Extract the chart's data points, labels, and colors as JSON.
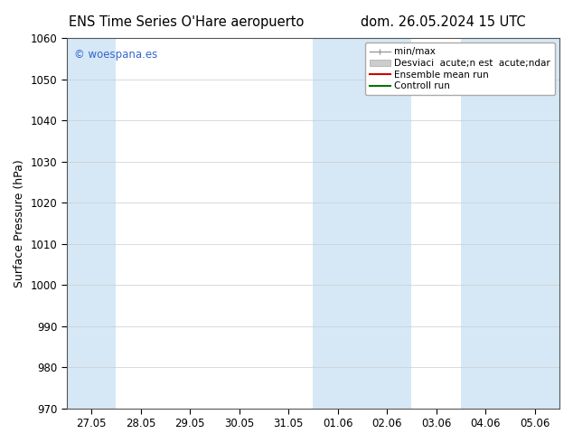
{
  "title_left": "ENS Time Series O'Hare aeropuerto",
  "title_right": "dom. 26.05.2024 15 UTC",
  "ylabel": "Surface Pressure (hPa)",
  "ylim": [
    970,
    1060
  ],
  "yticks": [
    970,
    980,
    990,
    1000,
    1010,
    1020,
    1030,
    1040,
    1050,
    1060
  ],
  "xlabel_ticks": [
    "27.05",
    "28.05",
    "29.05",
    "30.05",
    "31.05",
    "01.06",
    "02.06",
    "03.06",
    "04.06",
    "05.06"
  ],
  "x_num": [
    0,
    1,
    2,
    3,
    4,
    5,
    6,
    7,
    8,
    9
  ],
  "x_min": -0.5,
  "x_max": 9.5,
  "shaded_bands": [
    {
      "x_start": -0.5,
      "x_end": 0.5,
      "color": "#d6e8f5"
    },
    {
      "x_start": 4.5,
      "x_end": 6.5,
      "color": "#d6e8f5"
    },
    {
      "x_start": 7.5,
      "x_end": 9.5,
      "color": "#d6e8f5"
    }
  ],
  "watermark_text": "© woespana.es",
  "watermark_color": "#3366cc",
  "legend_minmax_color": "#999999",
  "legend_std_color": "#cccccc",
  "legend_mean_color": "#cc0000",
  "legend_control_color": "#007700",
  "legend_minmax_label": "min/max",
  "legend_std_label": "Desviaci  acute;n est  acute;ndar",
  "legend_mean_label": "Ensemble mean run",
  "legend_control_label": "Controll run",
  "background_color": "#ffffff",
  "grid_color": "#cccccc",
  "title_fontsize": 10.5,
  "label_fontsize": 9,
  "tick_fontsize": 8.5
}
